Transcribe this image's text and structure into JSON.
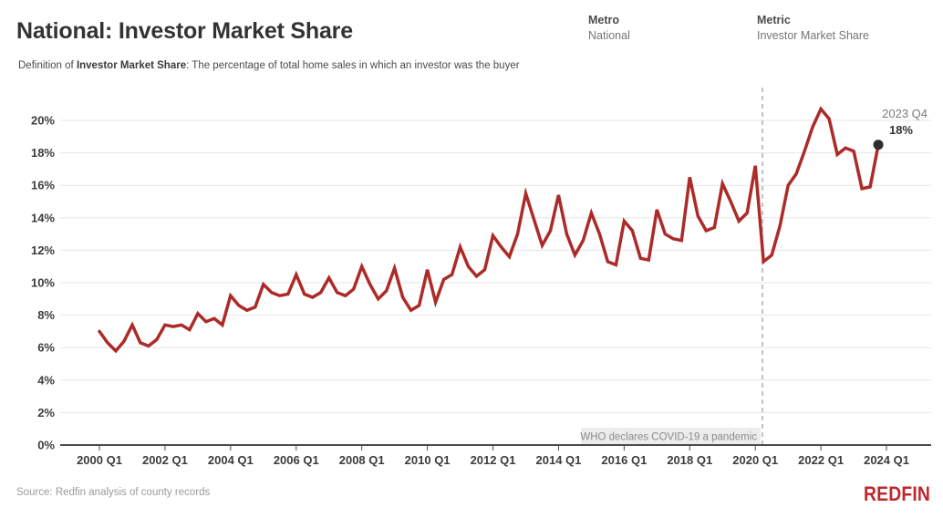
{
  "header": {
    "title": "National: Investor Market Share",
    "definition_prefix": "Definition of ",
    "definition_term": "Investor Market Share",
    "definition_rest": ": The percentage of total home sales in which an investor was the buyer"
  },
  "filters": {
    "metro": {
      "label": "Metro",
      "value": "National"
    },
    "metric": {
      "label": "Metric",
      "value": "Investor Market Share"
    }
  },
  "chart_data": {
    "type": "line",
    "title": "National: Investor Market Share",
    "series_name": "Investor Market Share",
    "unit": "percent",
    "x_start": "2000 Q1",
    "x_end": "2023 Q4",
    "frequency": "quarterly",
    "values": [
      7.0,
      6.3,
      5.8,
      6.4,
      7.4,
      6.3,
      6.1,
      6.5,
      7.4,
      7.3,
      7.4,
      7.1,
      8.1,
      7.6,
      7.8,
      7.4,
      9.2,
      8.6,
      8.3,
      8.5,
      9.9,
      9.4,
      9.2,
      9.3,
      10.5,
      9.3,
      9.1,
      9.4,
      10.3,
      9.4,
      9.2,
      9.6,
      11.0,
      9.9,
      9.0,
      9.5,
      10.9,
      9.1,
      8.3,
      8.6,
      10.8,
      8.8,
      10.2,
      10.5,
      12.2,
      11.0,
      10.4,
      10.8,
      12.9,
      12.2,
      11.6,
      13.0,
      15.5,
      13.9,
      12.3,
      13.2,
      15.4,
      13.0,
      11.7,
      12.6,
      14.3,
      13.0,
      11.3,
      11.1,
      13.8,
      13.2,
      11.5,
      11.4,
      14.5,
      13.0,
      12.7,
      12.6,
      16.5,
      14.1,
      13.2,
      13.4,
      16.1,
      15.0,
      13.8,
      14.3,
      17.2,
      11.3,
      11.7,
      13.5,
      16.0,
      16.7,
      18.1,
      19.6,
      20.7,
      20.1,
      17.9,
      18.3,
      18.1,
      15.8,
      15.9,
      18.5
    ],
    "x_tick_labels": [
      "2000 Q1",
      "2002 Q1",
      "2004 Q1",
      "2006 Q1",
      "2008 Q1",
      "2010 Q1",
      "2012 Q1",
      "2014 Q1",
      "2016 Q1",
      "2018 Q1",
      "2020 Q1",
      "2022 Q1",
      "2024 Q1"
    ],
    "y_ticks": [
      0,
      2,
      4,
      6,
      8,
      10,
      12,
      14,
      16,
      18,
      20
    ],
    "y_tick_labels": [
      "0%",
      "2%",
      "4%",
      "6%",
      "8%",
      "10%",
      "12%",
      "14%",
      "16%",
      "18%",
      "20%"
    ],
    "ylim": [
      0,
      21
    ],
    "grid": true,
    "legend_position": "none",
    "line_color": "#ac2b28",
    "annotation": {
      "text": "WHO declares COVID-19 a pandemic",
      "x_label": "2020 Q1"
    },
    "end_label": {
      "period": "2023 Q4",
      "value_label": "18%",
      "value": 18.5
    }
  },
  "footer": {
    "source": "Source: Redfin analysis of county records",
    "logo_text": "REDFIN",
    "logo_color": "#c0272d"
  }
}
